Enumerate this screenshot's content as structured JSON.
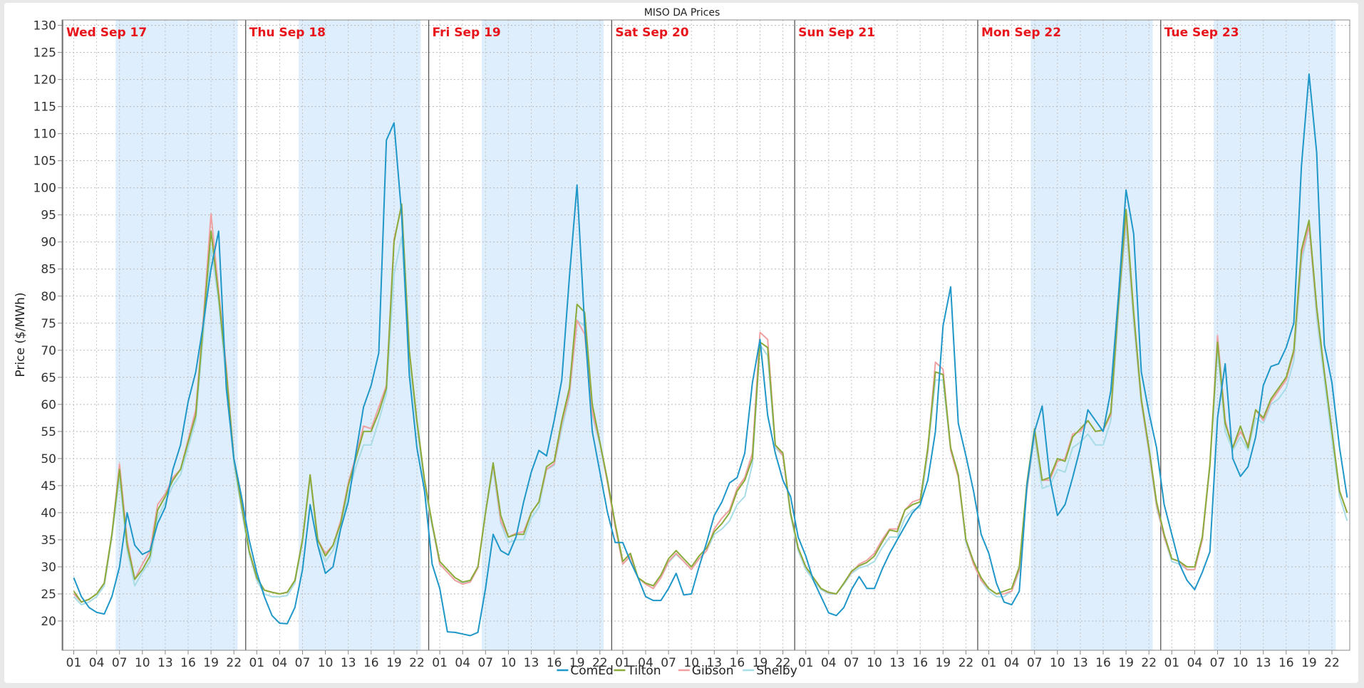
{
  "chart_data": {
    "type": "line",
    "title": "MISO DA Prices",
    "ylabel": "Price ($/MWh)",
    "xlabel": "",
    "ylim": [
      14.6,
      131
    ],
    "yticks": [
      20,
      25,
      30,
      35,
      40,
      45,
      50,
      55,
      60,
      65,
      70,
      75,
      80,
      85,
      90,
      95,
      100,
      105,
      110,
      115,
      120,
      125,
      130
    ],
    "xtick_labels": [
      "01",
      "04",
      "07",
      "10",
      "13",
      "16",
      "19",
      "22"
    ],
    "days": [
      "Wed Sep 17",
      "Thu Sep 18",
      "Fri Sep 19",
      "Sat Sep 20",
      "Sun Sep 21",
      "Mon Sep 22",
      "Tue Sep 23"
    ],
    "shaded_hours": [
      7,
      22
    ],
    "weekend_unshaded": [
      "Sat Sep 20",
      "Sun Sep 21"
    ],
    "grid": true,
    "legend_position": "bottom",
    "series": [
      {
        "name": "ComEd",
        "color": "#1f97c9",
        "values": [
          28,
          24.5,
          22.5,
          21.6,
          21.3,
          24.5,
          30,
          40,
          34,
          32.3,
          33,
          38,
          41,
          48,
          52.5,
          60.5,
          66,
          75,
          85,
          92,
          63,
          50,
          43,
          35,
          29,
          24.5,
          21,
          19.6,
          19.5,
          22.5,
          29.5,
          41.5,
          34,
          28.8,
          30,
          37,
          42,
          51,
          59.5,
          63.5,
          69.5,
          108.8,
          112,
          95,
          65.5,
          52,
          44,
          30.5,
          26,
          18,
          17.9,
          17.6,
          17.3,
          17.9,
          26,
          36,
          33,
          32.2,
          35.5,
          42,
          47.5,
          51.5,
          50.5,
          57,
          64.5,
          83.5,
          100.5,
          74.5,
          55,
          47.5,
          40,
          34.5,
          34.5,
          31,
          28,
          24.5,
          23.8,
          23.8,
          26,
          28.8,
          24.8,
          25,
          30,
          34.5,
          39.5,
          42,
          45.5,
          46.5,
          51,
          64,
          72,
          58,
          51,
          46,
          43,
          35.5,
          32,
          27.5,
          24.5,
          21.5,
          21,
          22.5,
          25.8,
          28.2,
          26,
          26,
          29.5,
          32.5,
          35,
          37.5,
          40,
          41.5,
          46,
          55,
          74.5,
          81.7,
          56.5,
          50.5,
          44,
          36,
          32.5,
          27,
          23.5,
          23,
          25.5,
          45,
          55,
          59.7,
          46.5,
          39.5,
          41.5,
          46.5,
          52,
          59,
          57,
          55,
          62.5,
          80,
          99.6,
          91.5,
          66,
          58.5,
          52,
          41.5,
          36,
          30.5,
          27.5,
          25.8,
          29,
          32.8,
          57.5,
          67.5,
          50,
          46.7,
          48.5,
          54,
          63.5,
          67,
          67.5,
          70.5,
          75,
          104,
          121,
          106.5,
          71,
          64,
          52,
          42.8
        ]
      },
      {
        "name": "Tilton",
        "color": "#8aab3a",
        "values": [
          25.5,
          23.5,
          24,
          25,
          27,
          36,
          48,
          34,
          27.7,
          29.5,
          32,
          40.5,
          43,
          46,
          48,
          53,
          58,
          75,
          92,
          80,
          66,
          50,
          41.5,
          33,
          28,
          25.7,
          25.3,
          25,
          25.3,
          27.5,
          35,
          47,
          35,
          32,
          34,
          38,
          45,
          50,
          55,
          55,
          58.5,
          63,
          90,
          97,
          70,
          57,
          46,
          38,
          31,
          29.5,
          28,
          27.2,
          27.5,
          30,
          40,
          49.2,
          39.5,
          35.5,
          36,
          36,
          40,
          42,
          48.5,
          49.5,
          57,
          63,
          78.5,
          77,
          60,
          53,
          46,
          38,
          31,
          32.5,
          28,
          27,
          26.5,
          28.5,
          31.5,
          33,
          31.5,
          30,
          32,
          33.5,
          36.5,
          38,
          40,
          44,
          46,
          50,
          71.5,
          70.5,
          52.5,
          51,
          40,
          33.5,
          30,
          28,
          26,
          25.3,
          25,
          27,
          29.2,
          30.2,
          30.8,
          32,
          34.5,
          36.8,
          36.5,
          40.5,
          41.5,
          42,
          52,
          66,
          65.5,
          52,
          47,
          35,
          31,
          28,
          26,
          25,
          25.5,
          26,
          30,
          45.5,
          55.5,
          46,
          46.5,
          50,
          49.5,
          54,
          55.5,
          57,
          55,
          55.3,
          58.5,
          78.5,
          96,
          77,
          61,
          52,
          42,
          36,
          31.5,
          31,
          30,
          30,
          35.5,
          49,
          71.5,
          56.5,
          52,
          56,
          52,
          59,
          57.5,
          61,
          63,
          65,
          70,
          88.5,
          94,
          78,
          66,
          55,
          44,
          40
        ]
      },
      {
        "name": "Gibson",
        "color": "#f0a0a0",
        "values": [
          25,
          23.5,
          24,
          25,
          27,
          36,
          49,
          35,
          27.7,
          30.5,
          33,
          41.5,
          43.5,
          46.5,
          48,
          53.5,
          59,
          76,
          95.2,
          81,
          67,
          50,
          41.5,
          33,
          28,
          25.7,
          25.3,
          25,
          25.3,
          27.5,
          35,
          47,
          35,
          32.5,
          34,
          38.5,
          45.5,
          50.5,
          56,
          55.5,
          59.5,
          63.5,
          90.5,
          96.5,
          70,
          57,
          46,
          38,
          30.5,
          29,
          27.5,
          26.8,
          27.2,
          29.8,
          40,
          49,
          38.5,
          35.5,
          36.2,
          36.5,
          40,
          42,
          48,
          49,
          56.5,
          62,
          75.5,
          73,
          58.5,
          53,
          45.5,
          37.5,
          30.5,
          32,
          28,
          26.8,
          26,
          28,
          31,
          32.5,
          31,
          29.5,
          31.5,
          33,
          37,
          39,
          40.5,
          44.5,
          46.5,
          51,
          73.3,
          72,
          52.5,
          50.5,
          40,
          33.5,
          30,
          28,
          26,
          25.2,
          25,
          27,
          29,
          30.5,
          31.2,
          32.5,
          35,
          37,
          37,
          40.5,
          42,
          42.5,
          51.5,
          67.8,
          66.5,
          51.5,
          46.5,
          35,
          30.5,
          27.5,
          26,
          25,
          25,
          25.5,
          29.5,
          44.5,
          55,
          46,
          46,
          49.5,
          50,
          54.5,
          55,
          57,
          55,
          55.2,
          58,
          78,
          95,
          76.5,
          60.5,
          51.5,
          41.5,
          35.5,
          31.5,
          31,
          29.5,
          29.5,
          35,
          49,
          72.7,
          57,
          52,
          55,
          52.5,
          59,
          57,
          60.5,
          62.5,
          64.5,
          69.5,
          87.5,
          93,
          77.5,
          66,
          55,
          44,
          40
        ]
      },
      {
        "name": "Shelby",
        "color": "#a8dce6",
        "values": [
          24.5,
          23,
          23.5,
          24.5,
          26.5,
          35.5,
          46.5,
          33,
          26.5,
          29,
          31,
          39,
          42,
          45,
          47,
          52,
          57,
          73,
          89,
          79,
          64,
          49,
          40.5,
          32.5,
          27.5,
          25,
          24.5,
          24.5,
          24.7,
          27,
          34.5,
          46.5,
          34,
          31,
          33,
          37,
          43.5,
          48.5,
          52.5,
          52.5,
          57,
          62,
          84,
          91,
          68,
          56,
          45,
          37.5,
          30.5,
          29,
          27.5,
          27,
          27.2,
          29.8,
          40,
          48,
          38,
          34.5,
          35,
          35,
          39,
          41,
          48,
          48.7,
          55.5,
          61.5,
          75.5,
          74.5,
          58,
          52.5,
          45.5,
          37.5,
          30.5,
          32,
          28,
          26.8,
          26,
          28,
          30.8,
          32.3,
          31,
          29.5,
          31.5,
          33,
          36,
          37,
          38.5,
          41.5,
          43,
          49,
          71,
          69,
          52,
          50.5,
          39.5,
          33,
          29.5,
          27.5,
          25.8,
          25,
          25,
          26.8,
          28.8,
          29.8,
          30.2,
          31,
          33.5,
          35.5,
          35.5,
          39,
          40.5,
          41,
          51,
          64.5,
          64.5,
          51.5,
          46.5,
          34.5,
          30.5,
          27.5,
          25.5,
          24.5,
          24.5,
          25.5,
          29.2,
          44,
          54,
          44.5,
          45,
          48,
          47.5,
          52,
          53,
          54.5,
          52.5,
          52.5,
          57,
          77,
          93,
          75,
          60,
          51,
          41,
          35.5,
          31,
          30.5,
          29.5,
          29.5,
          35,
          48.5,
          70,
          55,
          51.5,
          54,
          51.5,
          57.5,
          56.5,
          60,
          61,
          63,
          68,
          86,
          93,
          76,
          64.5,
          53.5,
          43,
          38.5
        ]
      }
    ]
  }
}
